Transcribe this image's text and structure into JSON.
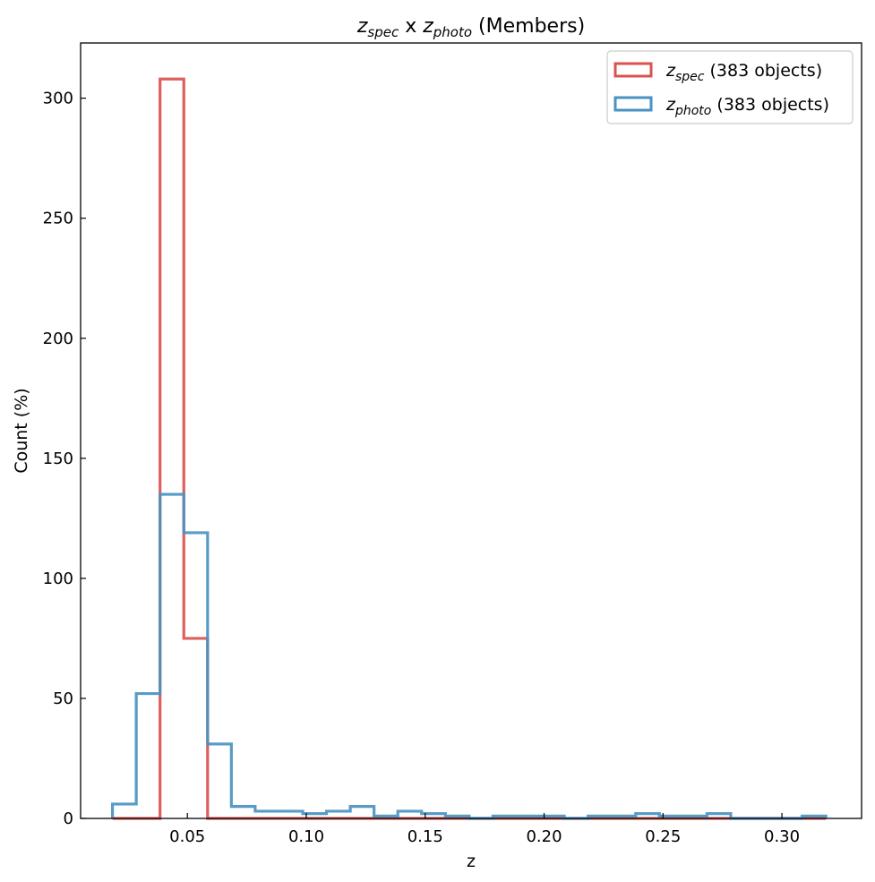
{
  "chart_data": {
    "type": "histogram-step",
    "title": {
      "parts": [
        {
          "text": "z",
          "italic": true
        },
        {
          "text": "spec",
          "italic": true,
          "sub": true
        },
        {
          "text": " x "
        },
        {
          "text": "z",
          "italic": true
        },
        {
          "text": "photo",
          "italic": true,
          "sub": true
        },
        {
          "text": " (Members)"
        }
      ]
    },
    "xlabel": "z",
    "ylabel": "Count (%)",
    "xlim": [
      0.0051,
      0.3335
    ],
    "ylim": [
      0,
      323
    ],
    "xticks": [
      0.05,
      0.1,
      0.15,
      0.2,
      0.25,
      0.3
    ],
    "xtick_labels": [
      "0.05",
      "0.10",
      "0.15",
      "0.20",
      "0.25",
      "0.30"
    ],
    "yticks": [
      0,
      50,
      100,
      150,
      200,
      250,
      300
    ],
    "ytick_labels": [
      "0",
      "50",
      "100",
      "150",
      "200",
      "250",
      "300"
    ],
    "bin_edges": [
      0.0185,
      0.0285,
      0.0385,
      0.0485,
      0.0585,
      0.0685,
      0.0785,
      0.0885,
      0.0985,
      0.1085,
      0.1185,
      0.1285,
      0.1385,
      0.1485,
      0.1585,
      0.1685,
      0.1785,
      0.1885,
      0.1985,
      0.2085,
      0.2185,
      0.2285,
      0.2385,
      0.2485,
      0.2585,
      0.2685,
      0.2785,
      0.2885,
      0.2985,
      0.3085,
      0.3185
    ],
    "legend_position": "top-right",
    "series": [
      {
        "label_main": "z",
        "label_sub": "spec",
        "label_suffix": "(383 objects)",
        "color": "#d9534f",
        "counts": [
          0,
          0,
          308,
          75,
          0,
          0,
          0,
          0,
          0,
          0,
          0,
          0,
          0,
          0,
          0,
          0,
          0,
          0,
          0,
          0,
          0,
          0,
          0,
          0,
          0,
          0,
          0,
          0,
          0,
          0
        ]
      },
      {
        "label_main": "z",
        "label_sub": "photo",
        "label_suffix": "(383 objects)",
        "color": "#4a92c2",
        "counts": [
          6,
          52,
          135,
          119,
          31,
          5,
          3,
          3,
          2,
          3,
          5,
          1,
          3,
          2,
          1,
          0,
          1,
          1,
          1,
          0,
          1,
          1,
          2,
          1,
          1,
          2,
          0,
          0,
          0,
          1
        ]
      }
    ]
  }
}
